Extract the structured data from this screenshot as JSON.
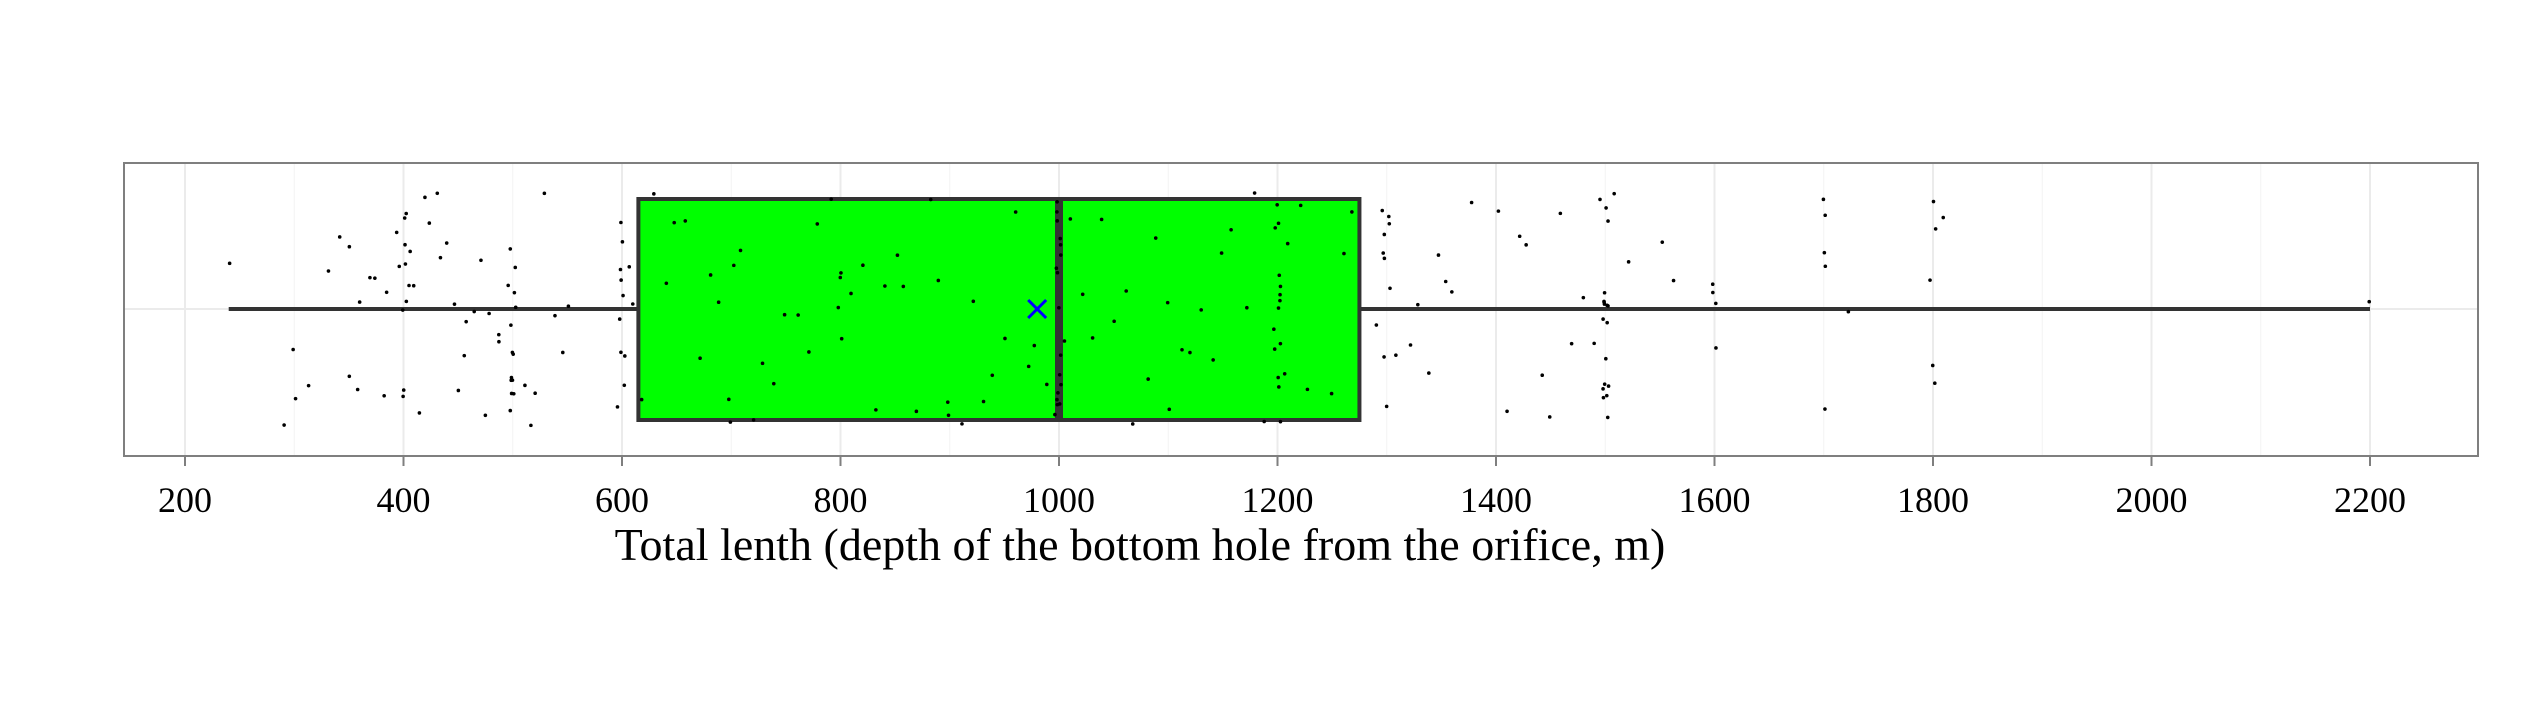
{
  "chart_data": {
    "type": "boxplot",
    "orientation": "horizontal",
    "xlabel": "Total lenth (depth of the bottom hole from the orifice, m)",
    "xlim": [
      145,
      2300
    ],
    "x_ticks": [
      200,
      400,
      600,
      800,
      1000,
      1200,
      1400,
      1600,
      1800,
      2000,
      2200
    ],
    "x_tick_labels": [
      "200",
      "400",
      "600",
      "800",
      "1000",
      "1200",
      "1400",
      "1600",
      "1800",
      "2000",
      "2200"
    ],
    "grid": true,
    "box": {
      "whisker_low": 240,
      "q1": 615,
      "median": 1000,
      "q3": 1275,
      "whisker_high": 2200,
      "mean": 980
    },
    "colors": {
      "box_fill": "#00ff00",
      "box_stroke": "#333333",
      "mean_marker": "#0000ff",
      "points": "#000000",
      "panel_border": "#7f7f7f",
      "grid": "#ebebeb"
    },
    "points_x": [
      240,
      290,
      298,
      303,
      312,
      330,
      340,
      350,
      352,
      356,
      362,
      368,
      375,
      380,
      385,
      392,
      398,
      400,
      400,
      400,
      400,
      400,
      400,
      400,
      402,
      404,
      405,
      410,
      415,
      420,
      425,
      430,
      435,
      440,
      445,
      450,
      455,
      460,
      465,
      470,
      475,
      480,
      485,
      490,
      495,
      498,
      500,
      500,
      500,
      500,
      500,
      500,
      500,
      500,
      500,
      500,
      502,
      505,
      510,
      515,
      520,
      530,
      540,
      545,
      550,
      595,
      598,
      600,
      600,
      600,
      600,
      600,
      600,
      600,
      602,
      605,
      610,
      620,
      630,
      640,
      650,
      660,
      670,
      680,
      690,
      700,
      700,
      700,
      710,
      720,
      730,
      740,
      750,
      760,
      770,
      780,
      790,
      800,
      800,
      800,
      800,
      810,
      820,
      830,
      840,
      850,
      860,
      870,
      880,
      890,
      900,
      900,
      910,
      920,
      930,
      940,
      950,
      960,
      970,
      980,
      990,
      995,
      998,
      1000,
      1000,
      1000,
      1000,
      1000,
      1000,
      1000,
      1000,
      1000,
      1000,
      1000,
      1000,
      1000,
      1000,
      1002,
      1005,
      1010,
      1020,
      1030,
      1040,
      1050,
      1060,
      1070,
      1080,
      1090,
      1100,
      1100,
      1110,
      1120,
      1130,
      1140,
      1150,
      1160,
      1170,
      1180,
      1190,
      1195,
      1198,
      1200,
      1200,
      1200,
      1200,
      1200,
      1200,
      1200,
      1200,
      1200,
      1200,
      1200,
      1202,
      1205,
      1210,
      1220,
      1230,
      1250,
      1260,
      1270,
      1290,
      1295,
      1298,
      1300,
      1300,
      1300,
      1300,
      1300,
      1302,
      1305,
      1310,
      1320,
      1330,
      1340,
      1350,
      1355,
      1360,
      1380,
      1400,
      1410,
      1420,
      1430,
      1440,
      1450,
      1460,
      1470,
      1480,
      1490,
      1495,
      1498,
      1500,
      1500,
      1500,
      1500,
      1500,
      1500,
      1500,
      1500,
      1500,
      1500,
      1500,
      1500,
      1500,
      1500,
      1502,
      1505,
      1510,
      1520,
      1550,
      1560,
      1600,
      1600,
      1600,
      1600,
      1700,
      1700,
      1700,
      1700,
      1700,
      1720,
      1800,
      1800,
      1800,
      1800,
      1800,
      1810,
      2200
    ]
  }
}
